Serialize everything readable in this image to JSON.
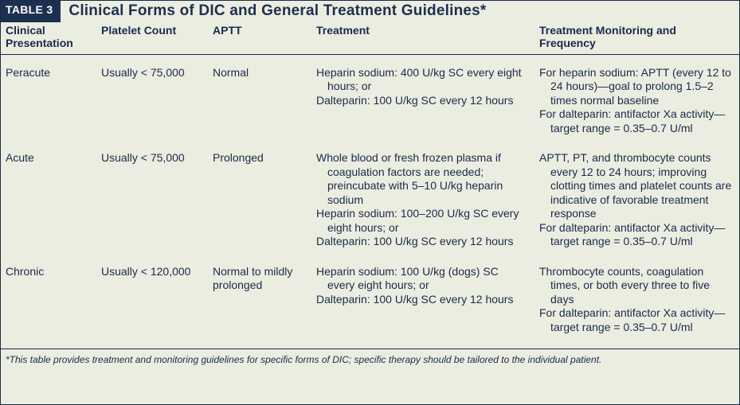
{
  "header": {
    "badge": "TABLE 3",
    "title": "Clinical Forms of DIC and General Treatment Guidelines*"
  },
  "columns": [
    "Clinical Presentation",
    "Platelet Count",
    "APTT",
    "Treatment",
    "Treatment Monitoring and Frequency"
  ],
  "rows": [
    {
      "presentation": "Peracute",
      "platelet": "Usually < 75,000",
      "aptt": "Normal",
      "treatment": [
        "Heparin sodium: 400 U/kg SC every eight hours; or",
        "Dalteparin: 100 U/kg SC every 12 hours"
      ],
      "monitoring": [
        "For heparin sodium: APTT (every 12 to 24 hours)—goal to prolong 1.5–2 times normal baseline",
        "For dalteparin: antifactor Xa activity—target range = 0.35–0.7 U/ml"
      ]
    },
    {
      "presentation": "Acute",
      "platelet": "Usually < 75,000",
      "aptt": "Prolonged",
      "treatment": [
        "Whole blood or fresh frozen plasma if coagulation factors are needed; preincubate with 5–10 U/kg heparin sodium",
        "Heparin sodium: 100–200 U/kg SC every eight hours; or",
        "Dalteparin: 100 U/kg SC every 12 hours"
      ],
      "monitoring": [
        "APTT, PT, and thrombocyte counts every 12 to 24 hours; improving clotting times and platelet counts are indicative of favorable treatment response",
        "For dalteparin: antifactor Xa activity—target range = 0.35–0.7 U/ml"
      ]
    },
    {
      "presentation": "Chronic",
      "platelet": "Usually < 120,000",
      "aptt": "Normal to mildly prolonged",
      "treatment": [
        "Heparin sodium: 100 U/kg (dogs) SC every eight hours; or",
        "Dalteparin: 100 U/kg SC every 12 hours"
      ],
      "monitoring": [
        "Thrombocyte counts, coagulation times, or both every three to five days",
        "For dalteparin: antifactor Xa activity—target range = 0.35–0.7 U/ml"
      ]
    }
  ],
  "footnote": "*This table provides treatment and monitoring guidelines for specific forms of DIC; specific therapy should be tailored to the individual patient."
}
